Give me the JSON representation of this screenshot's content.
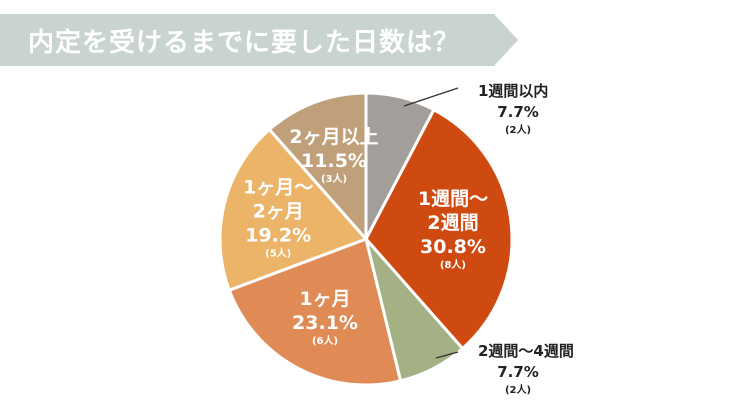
{
  "title": "内定を受けるまでに要した日数は？",
  "colors": {
    "banner": "#c9d3d1",
    "banner_text": "#ffffff",
    "inside_text": "#ffffff",
    "outside_text": "#222222",
    "leader": "#333333",
    "slice_border": "#ffffff"
  },
  "chart_data": {
    "type": "pie",
    "title": "内定を受けるまでに要した日数は？",
    "start_angle_deg": 0,
    "direction": "clockwise",
    "slices": [
      {
        "label": "1週間以内",
        "label_lines": [
          "1週間以内"
        ],
        "percent": 7.7,
        "percent_text": "7.7%",
        "count": 2,
        "count_text": "(2人)",
        "color": "#a39e99",
        "label_position": "outside-right"
      },
      {
        "label": "1週間〜2週間",
        "label_lines": [
          "1週間〜",
          "2週間"
        ],
        "percent": 30.8,
        "percent_text": "30.8%",
        "count": 8,
        "count_text": "(8人)",
        "color": "#cf4a10",
        "label_position": "inside"
      },
      {
        "label": "2週間〜4週間",
        "label_lines": [
          "2週間〜4週間"
        ],
        "percent": 7.7,
        "percent_text": "7.7%",
        "count": 2,
        "count_text": "(2人)",
        "color": "#a3b185",
        "label_position": "outside-right"
      },
      {
        "label": "1ヶ月",
        "label_lines": [
          "1ヶ月"
        ],
        "percent": 23.1,
        "percent_text": "23.1%",
        "count": 6,
        "count_text": "(6人)",
        "color": "#e08a55",
        "label_position": "inside"
      },
      {
        "label": "1ヶ月〜2ヶ月",
        "label_lines": [
          "1ヶ月〜",
          "2ヶ月"
        ],
        "percent": 19.2,
        "percent_text": "19.2%",
        "count": 5,
        "count_text": "(5人)",
        "color": "#ebb468",
        "label_position": "inside"
      },
      {
        "label": "2ヶ月以上",
        "label_lines": [
          "2ヶ月以上"
        ],
        "percent": 11.5,
        "percent_text": "11.5%",
        "count": 3,
        "count_text": "(3人)",
        "color": "#bfa07a",
        "label_position": "inside"
      }
    ]
  }
}
